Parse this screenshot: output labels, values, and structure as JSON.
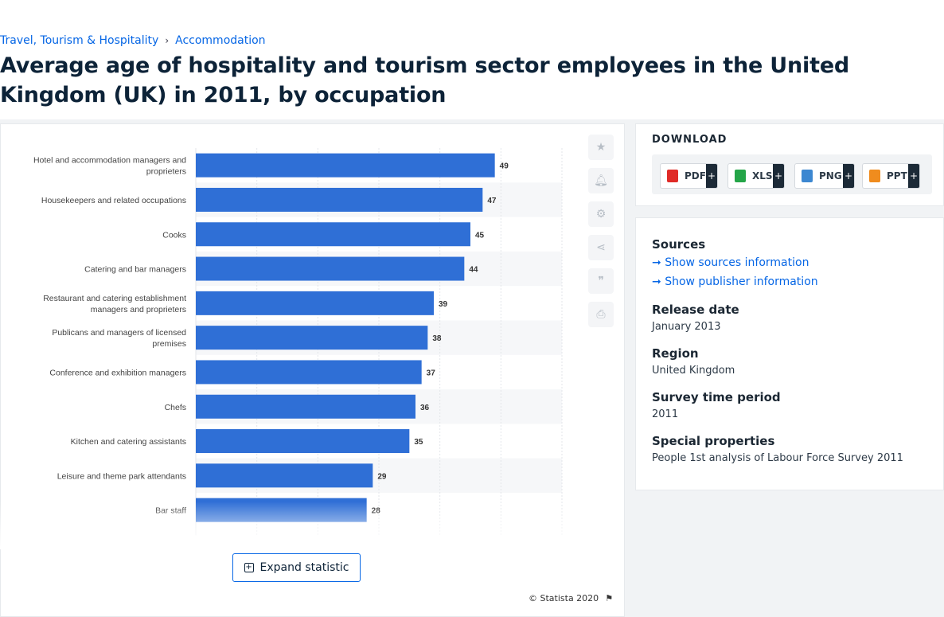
{
  "breadcrumb": {
    "item1": "Travel, Tourism & Hospitality",
    "separator": "›",
    "item2": "Accommodation"
  },
  "title": "Average age of hospitality and tourism sector employees in the United Kingdom (UK) in 2011, by occupation",
  "side_icons": [
    "star-icon",
    "bell-icon",
    "gear-icon",
    "share-icon",
    "quote-icon",
    "print-icon"
  ],
  "expand_label": "Expand statistic",
  "copyright": "© Statista 2020",
  "download": {
    "title": "DOWNLOAD",
    "buttons": [
      {
        "label": "PDF",
        "color": "#e02b27",
        "plus": "+"
      },
      {
        "label": "XLS",
        "color": "#24a548",
        "plus": "+"
      },
      {
        "label": "PNG",
        "color": "#3c87d1",
        "plus": "+"
      },
      {
        "label": "PPT",
        "color": "#f08c1e",
        "plus": "+"
      }
    ]
  },
  "info": {
    "sources_heading": "Sources",
    "show_sources": "Show sources information",
    "show_publisher": "Show publisher information",
    "release_heading": "Release date",
    "release_value": "January 2013",
    "region_heading": "Region",
    "region_value": "United Kingdom",
    "survey_heading": "Survey time period",
    "survey_value": "2011",
    "special_heading": "Special properties",
    "special_value": "People 1st analysis of Labour Force Survey 2011"
  },
  "colors": {
    "bar": "#2f6fd6",
    "accent": "#0666e5"
  },
  "chart_data": {
    "type": "bar",
    "orientation": "horizontal",
    "categories": [
      [
        "Hotel and accommodation managers and",
        "proprieters"
      ],
      [
        "Housekeepers and related occupations"
      ],
      [
        "Cooks"
      ],
      [
        "Catering and bar managers"
      ],
      [
        "Restaurant and catering establishment",
        "managers and proprieters"
      ],
      [
        "Publicans and managers of licensed",
        "premises"
      ],
      [
        "Conference and exhibition managers"
      ],
      [
        "Chefs"
      ],
      [
        "Kitchen and catering assistants"
      ],
      [
        "Leisure and theme park attendants"
      ],
      [
        "Bar staff"
      ]
    ],
    "values": [
      49,
      47,
      45,
      44,
      39,
      38,
      37,
      36,
      35,
      29,
      28
    ],
    "xlim": [
      0,
      60
    ],
    "grid": true
  }
}
